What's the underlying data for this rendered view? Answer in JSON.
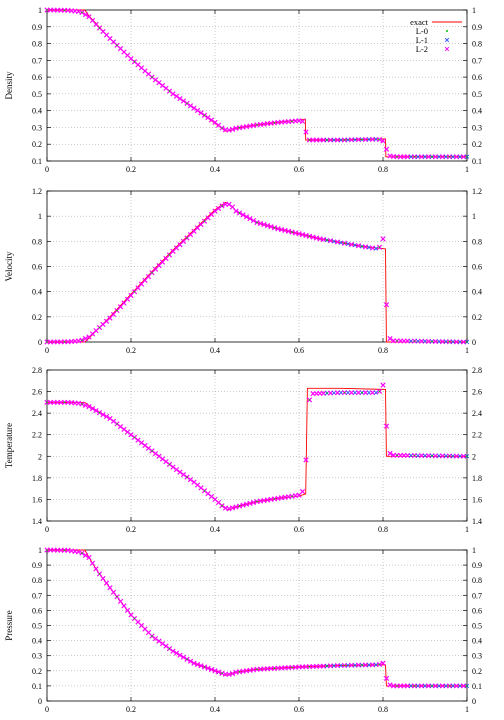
{
  "legend": [
    {
      "label": "exact",
      "color": "#ff0000",
      "marker": "line"
    },
    {
      "label": "L-0",
      "color": "#00c000",
      "marker": "dot"
    },
    {
      "label": "L-1",
      "color": "#3050ff",
      "marker": "x"
    },
    {
      "label": "L-2",
      "color": "#ff00ff",
      "marker": "x"
    }
  ],
  "chart_data": [
    {
      "type": "scatter",
      "title": "",
      "xlabel": "",
      "ylabel": "Density",
      "xlim": [
        0,
        1
      ],
      "ylim": [
        0.1,
        1
      ],
      "yticks": [
        "0.1",
        "0.2",
        "0.3",
        "0.4",
        "0.5",
        "0.6",
        "0.7",
        "0.8",
        "0.9",
        "1"
      ],
      "yticks_right": [
        "0.1",
        "0.2",
        "0.3",
        "0.4",
        "0.5",
        "0.6",
        "0.7",
        "0.8",
        "0.9",
        "1"
      ],
      "xticks": [
        "0",
        "0.2",
        "0.4",
        "0.6",
        "0.8",
        "1"
      ],
      "grid": true,
      "legend_position": "top-right",
      "exact": [
        [
          0,
          1.0
        ],
        [
          0.09,
          1.0
        ],
        [
          0.1,
          0.965
        ],
        [
          0.12,
          0.91
        ],
        [
          0.15,
          0.83
        ],
        [
          0.2,
          0.71
        ],
        [
          0.25,
          0.6
        ],
        [
          0.3,
          0.5
        ],
        [
          0.35,
          0.415
        ],
        [
          0.4,
          0.325
        ],
        [
          0.425,
          0.278
        ],
        [
          0.435,
          0.282
        ],
        [
          0.45,
          0.295
        ],
        [
          0.5,
          0.315
        ],
        [
          0.55,
          0.33
        ],
        [
          0.6,
          0.345
        ],
        [
          0.615,
          0.35
        ],
        [
          0.616,
          0.225
        ],
        [
          0.7,
          0.225
        ],
        [
          0.8,
          0.232
        ],
        [
          0.806,
          0.232
        ],
        [
          0.807,
          0.125
        ],
        [
          1.0,
          0.125
        ]
      ],
      "numeric": [
        [
          0,
          1.0
        ],
        [
          0.05,
          0.998
        ],
        [
          0.08,
          0.99
        ],
        [
          0.1,
          0.96
        ],
        [
          0.12,
          0.905
        ],
        [
          0.15,
          0.83
        ],
        [
          0.2,
          0.71
        ],
        [
          0.25,
          0.6
        ],
        [
          0.3,
          0.5
        ],
        [
          0.35,
          0.415
        ],
        [
          0.4,
          0.33
        ],
        [
          0.42,
          0.29
        ],
        [
          0.43,
          0.282
        ],
        [
          0.44,
          0.287
        ],
        [
          0.45,
          0.295
        ],
        [
          0.5,
          0.315
        ],
        [
          0.55,
          0.33
        ],
        [
          0.6,
          0.34
        ],
        [
          0.61,
          0.335
        ],
        [
          0.618,
          0.26
        ],
        [
          0.625,
          0.225
        ],
        [
          0.7,
          0.225
        ],
        [
          0.79,
          0.23
        ],
        [
          0.8,
          0.22
        ],
        [
          0.805,
          0.19
        ],
        [
          0.815,
          0.13
        ],
        [
          0.83,
          0.125
        ],
        [
          1.0,
          0.125
        ]
      ]
    },
    {
      "type": "scatter",
      "title": "",
      "xlabel": "",
      "ylabel": "Velocity",
      "xlim": [
        0,
        1
      ],
      "ylim": [
        0,
        1.2
      ],
      "yticks": [
        "0",
        "0.2",
        "0.4",
        "0.6",
        "0.8",
        "1",
        "1.2"
      ],
      "yticks_right": [
        "0",
        "0.2",
        "0.4",
        "0.6",
        "0.8",
        "1",
        "1.2"
      ],
      "xticks": [
        "0",
        "0.2",
        "0.4",
        "0.6",
        "0.8",
        "1"
      ],
      "grid": true,
      "exact": [
        [
          0,
          0
        ],
        [
          0.09,
          0
        ],
        [
          0.1,
          0.03
        ],
        [
          0.15,
          0.2
        ],
        [
          0.2,
          0.38
        ],
        [
          0.25,
          0.56
        ],
        [
          0.3,
          0.73
        ],
        [
          0.35,
          0.89
        ],
        [
          0.4,
          1.05
        ],
        [
          0.425,
          1.11
        ],
        [
          0.44,
          1.08
        ],
        [
          0.45,
          1.04
        ],
        [
          0.5,
          0.95
        ],
        [
          0.55,
          0.9
        ],
        [
          0.6,
          0.86
        ],
        [
          0.65,
          0.82
        ],
        [
          0.7,
          0.79
        ],
        [
          0.75,
          0.76
        ],
        [
          0.806,
          0.74
        ],
        [
          0.808,
          0
        ],
        [
          1.0,
          0
        ]
      ],
      "numeric": [
        [
          0,
          0
        ],
        [
          0.05,
          0.002
        ],
        [
          0.08,
          0.01
        ],
        [
          0.1,
          0.04
        ],
        [
          0.15,
          0.19
        ],
        [
          0.2,
          0.37
        ],
        [
          0.25,
          0.55
        ],
        [
          0.3,
          0.72
        ],
        [
          0.35,
          0.88
        ],
        [
          0.4,
          1.04
        ],
        [
          0.42,
          1.09
        ],
        [
          0.43,
          1.1
        ],
        [
          0.44,
          1.08
        ],
        [
          0.45,
          1.04
        ],
        [
          0.5,
          0.95
        ],
        [
          0.55,
          0.9
        ],
        [
          0.6,
          0.86
        ],
        [
          0.65,
          0.82
        ],
        [
          0.7,
          0.79
        ],
        [
          0.75,
          0.76
        ],
        [
          0.79,
          0.74
        ],
        [
          0.8,
          0.82
        ],
        [
          0.803,
          0.7
        ],
        [
          0.806,
          0.63
        ],
        [
          0.809,
          0.2
        ],
        [
          0.812,
          0.05
        ],
        [
          0.82,
          0.01
        ],
        [
          1.0,
          0
        ]
      ]
    },
    {
      "type": "scatter",
      "title": "",
      "xlabel": "",
      "ylabel": "Temperature",
      "xlim": [
        0,
        1
      ],
      "ylim": [
        1.4,
        2.8
      ],
      "yticks": [
        "1.4",
        "1.6",
        "1.8",
        "2",
        "2.2",
        "2.4",
        "2.6",
        "2.8"
      ],
      "yticks_right": [
        "1.4",
        "1.6",
        "1.8",
        "2",
        "2.2",
        "2.4",
        "2.6",
        "2.8"
      ],
      "xticks": [
        "0",
        "0.2",
        "0.4",
        "0.6",
        "0.8",
        "1"
      ],
      "grid": true,
      "exact": [
        [
          0,
          2.5
        ],
        [
          0.09,
          2.5
        ],
        [
          0.1,
          2.47
        ],
        [
          0.15,
          2.35
        ],
        [
          0.2,
          2.2
        ],
        [
          0.25,
          2.05
        ],
        [
          0.3,
          1.9
        ],
        [
          0.35,
          1.76
        ],
        [
          0.4,
          1.6
        ],
        [
          0.43,
          1.5
        ],
        [
          0.45,
          1.53
        ],
        [
          0.5,
          1.58
        ],
        [
          0.55,
          1.61
        ],
        [
          0.6,
          1.63
        ],
        [
          0.615,
          1.65
        ],
        [
          0.616,
          1.65
        ],
        [
          0.62,
          2.63
        ],
        [
          0.7,
          2.63
        ],
        [
          0.8,
          2.62
        ],
        [
          0.806,
          2.62
        ],
        [
          0.808,
          2.0
        ],
        [
          1.0,
          2.0
        ]
      ],
      "numeric": [
        [
          0,
          2.5
        ],
        [
          0.05,
          2.5
        ],
        [
          0.08,
          2.49
        ],
        [
          0.1,
          2.46
        ],
        [
          0.15,
          2.35
        ],
        [
          0.2,
          2.2
        ],
        [
          0.25,
          2.05
        ],
        [
          0.3,
          1.9
        ],
        [
          0.35,
          1.76
        ],
        [
          0.4,
          1.6
        ],
        [
          0.42,
          1.53
        ],
        [
          0.43,
          1.51
        ],
        [
          0.44,
          1.52
        ],
        [
          0.45,
          1.53
        ],
        [
          0.5,
          1.58
        ],
        [
          0.55,
          1.61
        ],
        [
          0.6,
          1.64
        ],
        [
          0.61,
          1.68
        ],
        [
          0.615,
          1.8
        ],
        [
          0.62,
          2.3
        ],
        [
          0.623,
          2.5
        ],
        [
          0.63,
          2.58
        ],
        [
          0.7,
          2.59
        ],
        [
          0.79,
          2.59
        ],
        [
          0.8,
          2.66
        ],
        [
          0.803,
          2.58
        ],
        [
          0.806,
          2.52
        ],
        [
          0.808,
          2.3
        ],
        [
          0.812,
          2.05
        ],
        [
          0.82,
          2.01
        ],
        [
          1.0,
          2.0
        ]
      ]
    },
    {
      "type": "scatter",
      "title": "",
      "xlabel": "",
      "ylabel": "Pressure",
      "xlim": [
        0,
        1
      ],
      "ylim": [
        0,
        1
      ],
      "yticks": [
        "0",
        "0.1",
        "0.2",
        "0.3",
        "0.4",
        "0.5",
        "0.6",
        "0.7",
        "0.8",
        "0.9",
        "1"
      ],
      "yticks_right": [
        "0",
        "0.1",
        "0.2",
        "0.3",
        "0.4",
        "0.5",
        "0.6",
        "0.7",
        "0.8",
        "0.9",
        "1"
      ],
      "xticks": [
        "0",
        "0.2",
        "0.4",
        "0.6",
        "0.8",
        "1"
      ],
      "grid": true,
      "exact": [
        [
          0,
          1.0
        ],
        [
          0.09,
          1.0
        ],
        [
          0.1,
          0.95
        ],
        [
          0.12,
          0.86
        ],
        [
          0.15,
          0.75
        ],
        [
          0.2,
          0.57
        ],
        [
          0.25,
          0.43
        ],
        [
          0.3,
          0.33
        ],
        [
          0.35,
          0.25
        ],
        [
          0.4,
          0.2
        ],
        [
          0.425,
          0.17
        ],
        [
          0.45,
          0.19
        ],
        [
          0.5,
          0.21
        ],
        [
          0.6,
          0.225
        ],
        [
          0.7,
          0.235
        ],
        [
          0.806,
          0.24
        ],
        [
          0.808,
          0.1
        ],
        [
          1.0,
          0.1
        ]
      ],
      "numeric": [
        [
          0,
          1.0
        ],
        [
          0.05,
          0.998
        ],
        [
          0.08,
          0.985
        ],
        [
          0.1,
          0.95
        ],
        [
          0.12,
          0.86
        ],
        [
          0.15,
          0.75
        ],
        [
          0.2,
          0.57
        ],
        [
          0.25,
          0.43
        ],
        [
          0.3,
          0.33
        ],
        [
          0.35,
          0.25
        ],
        [
          0.4,
          0.2
        ],
        [
          0.42,
          0.18
        ],
        [
          0.43,
          0.175
        ],
        [
          0.44,
          0.18
        ],
        [
          0.45,
          0.19
        ],
        [
          0.5,
          0.21
        ],
        [
          0.6,
          0.225
        ],
        [
          0.7,
          0.235
        ],
        [
          0.79,
          0.24
        ],
        [
          0.8,
          0.25
        ],
        [
          0.805,
          0.21
        ],
        [
          0.81,
          0.12
        ],
        [
          0.82,
          0.1
        ],
        [
          1.0,
          0.1
        ]
      ]
    }
  ]
}
